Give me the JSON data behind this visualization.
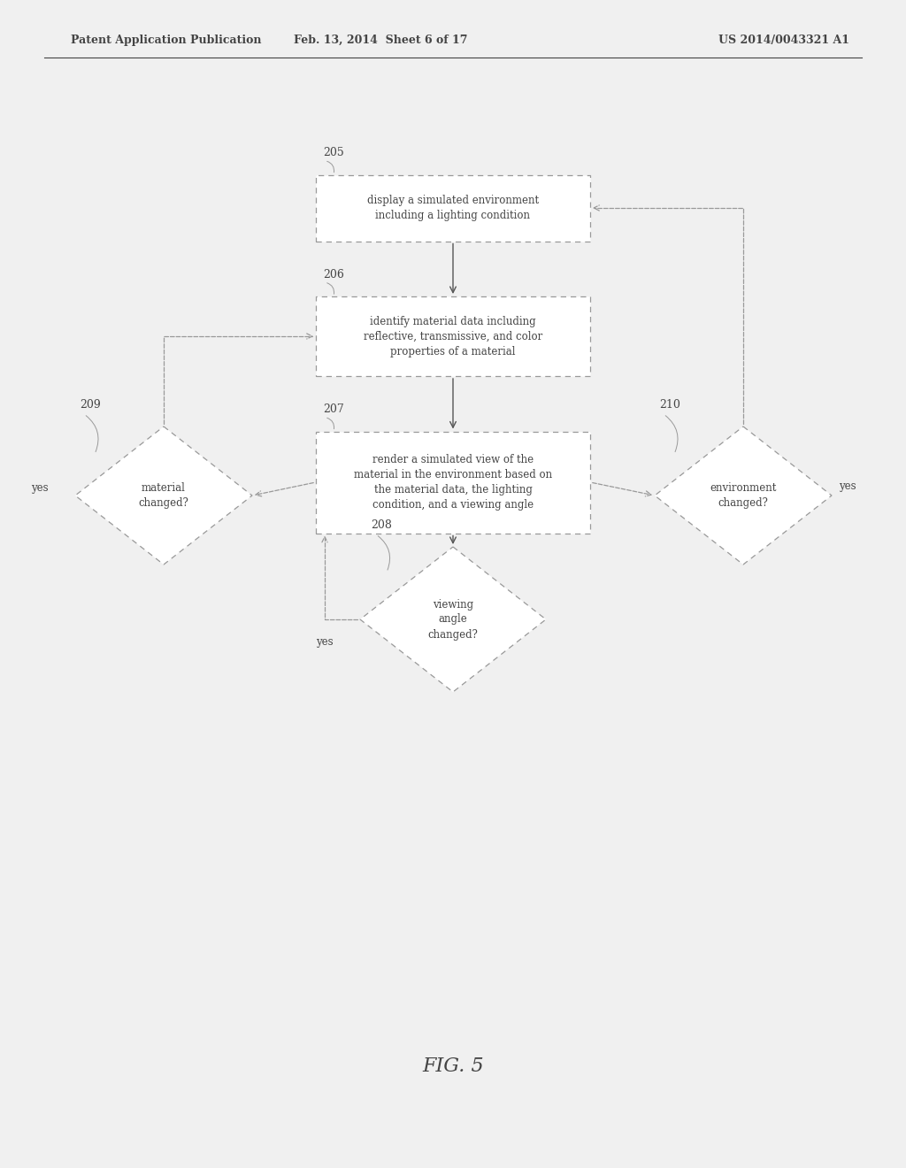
{
  "header_left": "Patent Application Publication",
  "header_mid": "Feb. 13, 2014  Sheet 6 of 17",
  "header_right": "US 2014/0043321 A1",
  "fig_caption": "FIG. 5",
  "box205_label": "205",
  "box205_text": "display a simulated environment\nincluding a lighting condition",
  "box206_label": "206",
  "box206_text": "identify material data including\nreflective, transmissive, and color\nproperties of a material",
  "box207_label": "207",
  "box207_text": "render a simulated view of the\nmaterial in the environment based on\nthe material data, the lighting\ncondition, and a viewing angle",
  "diamond208_label": "208",
  "diamond208_text": "viewing\nangle\nchanged?",
  "diamond209_label": "209",
  "diamond209_text": "material\nchanged?",
  "diamond210_label": "210",
  "diamond210_text": "environment\nchanged?",
  "yes_208": "yes",
  "yes_209": "yes",
  "yes_210": "yes",
  "box_edge_color": "#999999",
  "arrow_color": "#555555",
  "text_color": "#444444",
  "bg_color": "#f0f0f0",
  "header_line_color": "#444444"
}
